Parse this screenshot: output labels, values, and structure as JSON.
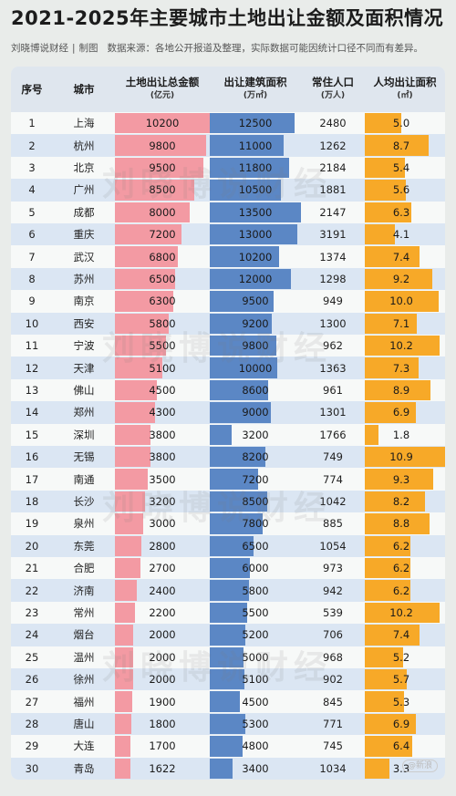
{
  "title": "2021-2025年主要城市土地出让金额及面积情况",
  "subtitle": {
    "author": "刘晓博说财经",
    "sep": "|",
    "credit": "制图",
    "source": "数据来源：各地公开报道及整理，实际数据可能因统计口径不同而有差异。"
  },
  "watermark_text": "刘晓博说财经",
  "logo_text": "@新浪",
  "colors": {
    "amount_bar": "#f39aa3",
    "area_bar": "#5b87c5",
    "percap_bar": "#f7a928",
    "header_bg": "#dfe6ee",
    "stripe": "#dbe6f3"
  },
  "headers": {
    "rank": "序号",
    "city": "城市",
    "amount": "土地出让总金额",
    "amount_unit": "(亿元)",
    "area": "出让建筑面积",
    "area_unit": "(万㎡)",
    "pop": "常住人口",
    "pop_unit": "(万人)",
    "percap": "人均出让面积",
    "percap_unit": "(㎡)"
  },
  "chart_data": {
    "type": "table",
    "title": "2021-2025年主要城市土地出让金额及面积情况",
    "columns": [
      "序号",
      "城市",
      "土地出让总金额(亿元)",
      "出让建筑面积(万㎡)",
      "常住人口(万人)",
      "人均出让面积(㎡)"
    ],
    "rows": [
      {
        "rank": "1",
        "city": "上海",
        "amount": 10200,
        "area": 12500,
        "pop": 2480,
        "percap": "5.0"
      },
      {
        "rank": "2",
        "city": "杭州",
        "amount": 9800,
        "area": 11000,
        "pop": 1262,
        "percap": "8.7"
      },
      {
        "rank": "3",
        "city": "北京",
        "amount": 9500,
        "area": 11800,
        "pop": 2184,
        "percap": "5.4"
      },
      {
        "rank": "4",
        "city": "广州",
        "amount": 8500,
        "area": 10500,
        "pop": 1881,
        "percap": "5.6"
      },
      {
        "rank": "5",
        "city": "成都",
        "amount": 8000,
        "area": 13500,
        "pop": 2147,
        "percap": "6.3"
      },
      {
        "rank": "6",
        "city": "重庆",
        "amount": 7200,
        "area": 13000,
        "pop": 3191,
        "percap": "4.1"
      },
      {
        "rank": "7",
        "city": "武汉",
        "amount": 6800,
        "area": 10200,
        "pop": 1374,
        "percap": "7.4"
      },
      {
        "rank": "8",
        "city": "苏州",
        "amount": 6500,
        "area": 12000,
        "pop": 1298,
        "percap": "9.2"
      },
      {
        "rank": "9",
        "city": "南京",
        "amount": 6300,
        "area": 9500,
        "pop": 949,
        "percap": "10.0"
      },
      {
        "rank": "10",
        "city": "西安",
        "amount": 5800,
        "area": 9200,
        "pop": 1300,
        "percap": "7.1"
      },
      {
        "rank": "11",
        "city": "宁波",
        "amount": 5500,
        "area": 9800,
        "pop": 962,
        "percap": "10.2"
      },
      {
        "rank": "12",
        "city": "天津",
        "amount": 5100,
        "area": 10000,
        "pop": 1363,
        "percap": "7.3"
      },
      {
        "rank": "13",
        "city": "佛山",
        "amount": 4500,
        "area": 8600,
        "pop": 961,
        "percap": "8.9"
      },
      {
        "rank": "14",
        "city": "郑州",
        "amount": 4300,
        "area": 9000,
        "pop": 1301,
        "percap": "6.9"
      },
      {
        "rank": "15",
        "city": "深圳",
        "amount": 3800,
        "area": 3200,
        "pop": 1766,
        "percap": "1.8"
      },
      {
        "rank": "16",
        "city": "无锡",
        "amount": 3800,
        "area": 8200,
        "pop": 749,
        "percap": "10.9"
      },
      {
        "rank": "17",
        "city": "南通",
        "amount": 3500,
        "area": 7200,
        "pop": 774,
        "percap": "9.3"
      },
      {
        "rank": "18",
        "city": "长沙",
        "amount": 3200,
        "area": 8500,
        "pop": 1042,
        "percap": "8.2"
      },
      {
        "rank": "19",
        "city": "泉州",
        "amount": 3000,
        "area": 7800,
        "pop": 885,
        "percap": "8.8"
      },
      {
        "rank": "20",
        "city": "东莞",
        "amount": 2800,
        "area": 6500,
        "pop": 1054,
        "percap": "6.2"
      },
      {
        "rank": "21",
        "city": "合肥",
        "amount": 2700,
        "area": 6000,
        "pop": 973,
        "percap": "6.2"
      },
      {
        "rank": "22",
        "city": "济南",
        "amount": 2400,
        "area": 5800,
        "pop": 942,
        "percap": "6.2"
      },
      {
        "rank": "23",
        "city": "常州",
        "amount": 2200,
        "area": 5500,
        "pop": 539,
        "percap": "10.2"
      },
      {
        "rank": "24",
        "city": "烟台",
        "amount": 2000,
        "area": 5200,
        "pop": 706,
        "percap": "7.4"
      },
      {
        "rank": "25",
        "city": "温州",
        "amount": 2000,
        "area": 5000,
        "pop": 968,
        "percap": "5.2"
      },
      {
        "rank": "26",
        "city": "徐州",
        "amount": 2000,
        "area": 5100,
        "pop": 902,
        "percap": "5.7"
      },
      {
        "rank": "27",
        "city": "福州",
        "amount": 1900,
        "area": 4500,
        "pop": 845,
        "percap": "5.3"
      },
      {
        "rank": "28",
        "city": "唐山",
        "amount": 1800,
        "area": 5300,
        "pop": 771,
        "percap": "6.9"
      },
      {
        "rank": "29",
        "city": "大连",
        "amount": 1700,
        "area": 4800,
        "pop": 745,
        "percap": "6.4"
      },
      {
        "rank": "30",
        "city": "青岛",
        "amount": 1622,
        "area": 3400,
        "pop": 1034,
        "percap": "3.3"
      }
    ],
    "scales": {
      "amount_max": 10200,
      "area_max": 13500,
      "percap_max": 10.9
    }
  }
}
